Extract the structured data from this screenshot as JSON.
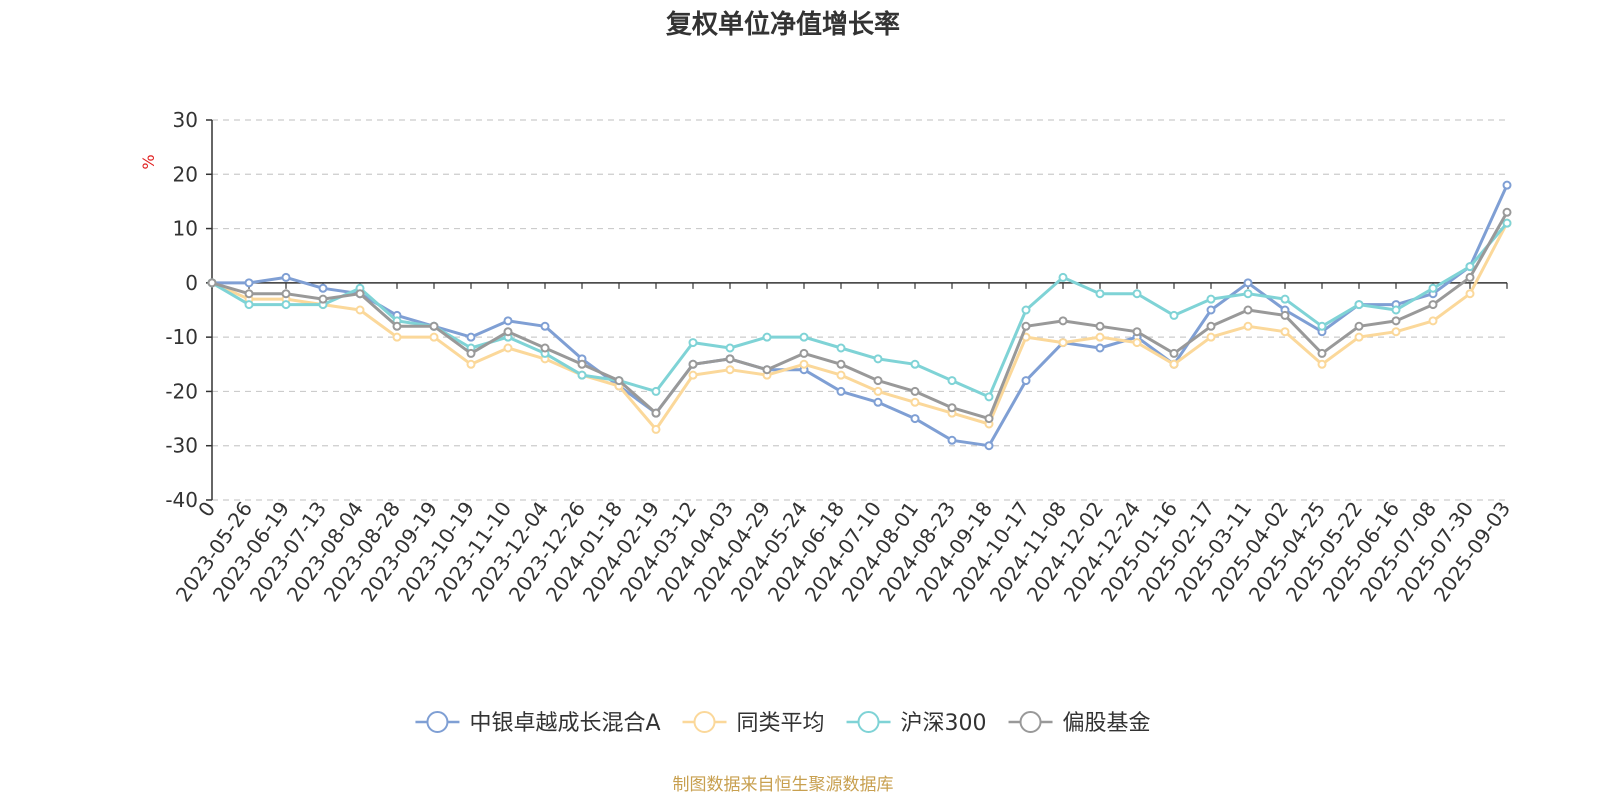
{
  "chart_data": {
    "type": "line",
    "title": "复权单位净值增长率",
    "ylabel": "%",
    "ylim": [
      -40,
      30
    ],
    "yticks": [
      30,
      20,
      10,
      0,
      -10,
      -20,
      -30,
      -40
    ],
    "grid": true,
    "legend_position": "bottom",
    "source_note": "制图数据来自恒生聚源数据库",
    "x": [
      "0",
      "2023-05-26",
      "2023-06-19",
      "2023-07-13",
      "2023-08-04",
      "2023-08-28",
      "2023-09-19",
      "2023-10-19",
      "2023-11-10",
      "2023-12-04",
      "2023-12-26",
      "2024-01-18",
      "2024-02-19",
      "2024-03-12",
      "2024-04-03",
      "2024-04-29",
      "2024-05-24",
      "2024-06-18",
      "2024-07-10",
      "2024-08-01",
      "2024-08-23",
      "2024-09-18",
      "2024-10-17",
      "2024-11-08",
      "2024-12-02",
      "2024-12-24",
      "2025-01-16",
      "2025-02-17",
      "2025-03-11",
      "2025-04-02",
      "2025-04-25",
      "2025-05-22",
      "2025-06-16",
      "2025-07-08",
      "2025-07-30",
      "2025-09-03"
    ],
    "series": [
      {
        "name": "中银卓越成长混合A",
        "color": "#7f9fd4",
        "values": [
          0,
          0,
          1,
          -1,
          -2,
          -6,
          -8,
          -10,
          -7,
          -8,
          -14,
          -19,
          -24,
          -15,
          -14,
          -16,
          -16,
          -20,
          -22,
          -25,
          -29,
          -30,
          -18,
          -11,
          -12,
          -10,
          -15,
          -5,
          0,
          -5,
          -9,
          -4,
          -4,
          -2,
          3,
          18
        ]
      },
      {
        "name": "同类平均",
        "color": "#fbd89a",
        "values": [
          0,
          -3,
          -3,
          -4,
          -5,
          -10,
          -10,
          -15,
          -12,
          -14,
          -17,
          -19,
          -27,
          -17,
          -16,
          -17,
          -15,
          -17,
          -20,
          -22,
          -24,
          -26,
          -10,
          -11,
          -10,
          -11,
          -15,
          -10,
          -8,
          -9,
          -15,
          -10,
          -9,
          -7,
          -2,
          11
        ]
      },
      {
        "name": "沪深300",
        "color": "#7fd3d6",
        "values": [
          0,
          -4,
          -4,
          -4,
          -1,
          -7,
          -8,
          -12,
          -10,
          -13,
          -17,
          -18,
          -20,
          -11,
          -12,
          -10,
          -10,
          -12,
          -14,
          -15,
          -18,
          -21,
          -5,
          1,
          -2,
          -2,
          -6,
          -3,
          -2,
          -3,
          -8,
          -4,
          -5,
          -1,
          3,
          11
        ]
      },
      {
        "name": "偏股基金",
        "color": "#999999",
        "values": [
          0,
          -2,
          -2,
          -3,
          -2,
          -8,
          -8,
          -13,
          -9,
          -12,
          -15,
          -18,
          -24,
          -15,
          -14,
          -16,
          -13,
          -15,
          -18,
          -20,
          -23,
          -25,
          -8,
          -7,
          -8,
          -9,
          -13,
          -8,
          -5,
          -6,
          -13,
          -8,
          -7,
          -4,
          1,
          13
        ]
      }
    ]
  }
}
